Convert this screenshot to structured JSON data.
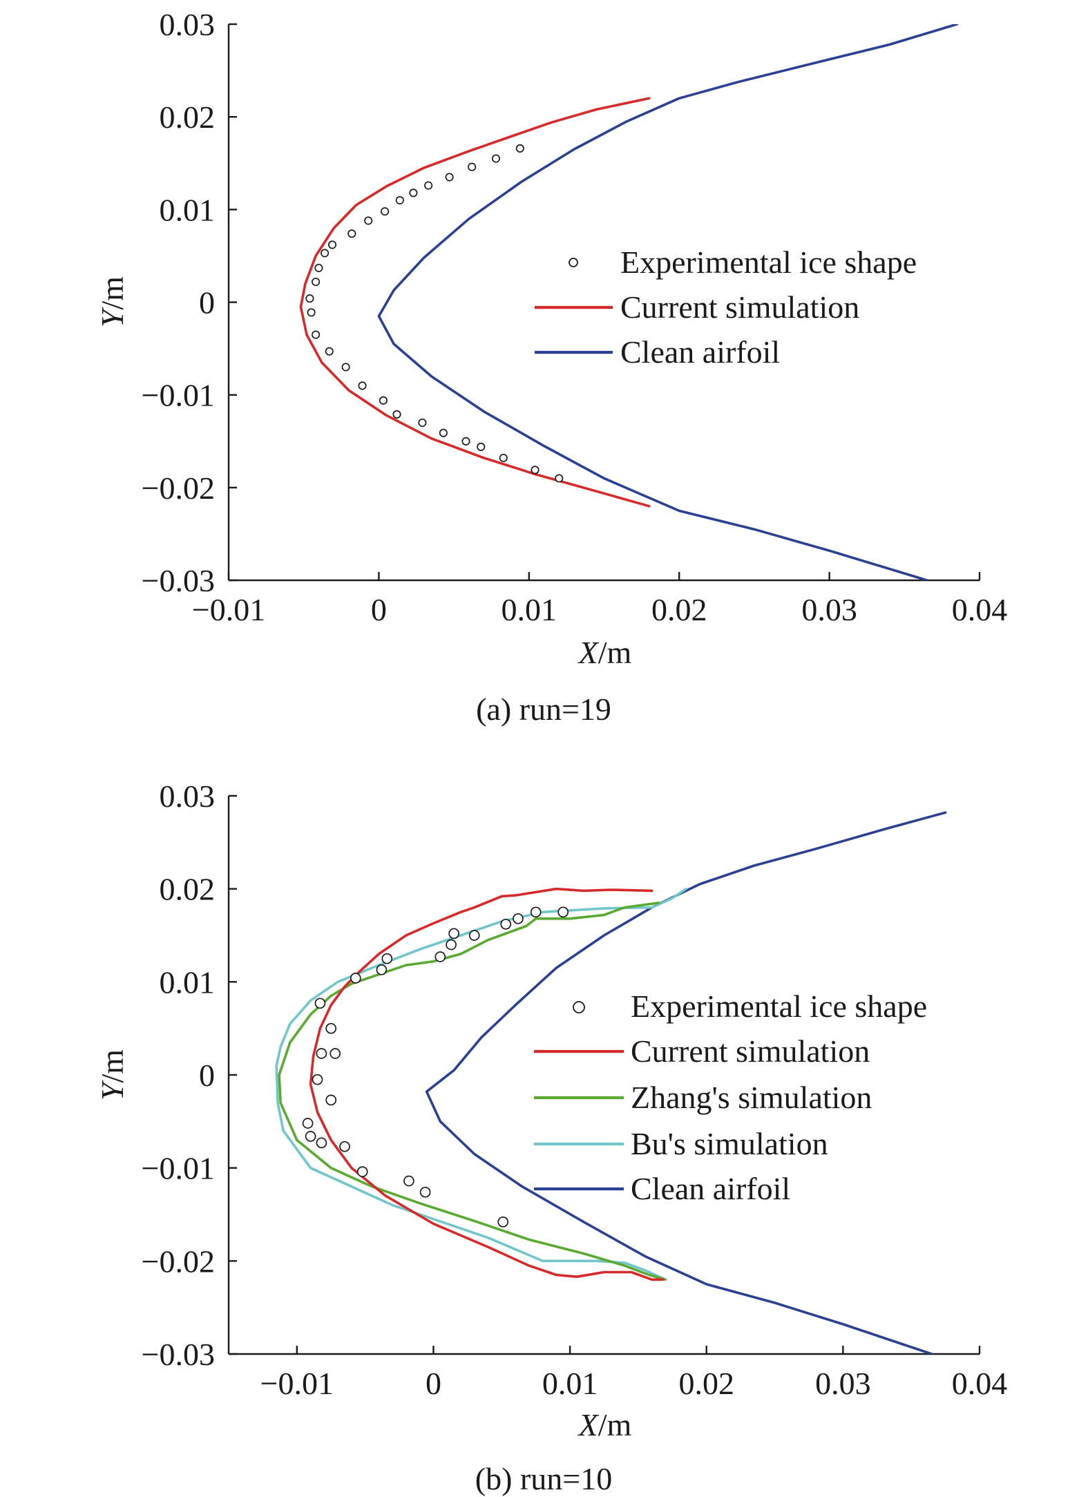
{
  "chart_data": [
    {
      "type": "line",
      "caption": "(a) run=19",
      "xlabel_italic": "X",
      "xlabel_unit": "/m",
      "ylabel_italic": "Y",
      "ylabel_unit": "/m",
      "xlim": [
        -0.01,
        0.04
      ],
      "ylim": [
        -0.03,
        0.03
      ],
      "xticks": [
        -0.01,
        0,
        0.01,
        0.02,
        0.03,
        0.04
      ],
      "xtick_labels": [
        "−0.01",
        "0",
        "0.01",
        "0.02",
        "0.03",
        "0.04"
      ],
      "yticks": [
        0.03,
        0.02,
        0.01,
        0,
        -0.01,
        -0.02,
        -0.03
      ],
      "ytick_labels": [
        "0.03",
        "0.02",
        "0.01",
        "0",
        "−0.01",
        "−0.02",
        "−0.03"
      ],
      "legend": [
        "Experimental ice shape",
        "Current simulation",
        "Clean airfoil"
      ],
      "series": [
        {
          "name": "Experimental ice shape",
          "kind": "markers",
          "color": "#1a1a1a",
          "points": [
            [
              0.0094,
              0.0166
            ],
            [
              0.0078,
              0.0155
            ],
            [
              0.0062,
              0.0146
            ],
            [
              0.0047,
              0.0135
            ],
            [
              0.0033,
              0.0126
            ],
            [
              0.0023,
              0.0118
            ],
            [
              0.0014,
              0.011
            ],
            [
              0.0004,
              0.0098
            ],
            [
              -0.0007,
              0.0088
            ],
            [
              -0.0018,
              0.0074
            ],
            [
              -0.0031,
              0.0062
            ],
            [
              -0.0036,
              0.0053
            ],
            [
              -0.004,
              0.0037
            ],
            [
              -0.0042,
              0.0022
            ],
            [
              -0.0046,
              0.0004
            ],
            [
              -0.0045,
              -0.0011
            ],
            [
              -0.0042,
              -0.0035
            ],
            [
              -0.0033,
              -0.0053
            ],
            [
              -0.0022,
              -0.007
            ],
            [
              -0.0011,
              -0.009
            ],
            [
              0.0003,
              -0.0106
            ],
            [
              0.0012,
              -0.0121
            ],
            [
              0.0029,
              -0.013
            ],
            [
              0.0043,
              -0.0141
            ],
            [
              0.0058,
              -0.015
            ],
            [
              0.0068,
              -0.0156
            ],
            [
              0.0083,
              -0.0168
            ],
            [
              0.0104,
              -0.0181
            ],
            [
              0.012,
              -0.019
            ]
          ]
        },
        {
          "name": "Current simulation",
          "kind": "line",
          "color": "#d62a2a",
          "points": [
            [
              0.018,
              0.022
            ],
            [
              0.0145,
              0.0208
            ],
            [
              0.0115,
              0.0194
            ],
            [
              0.009,
              0.018
            ],
            [
              0.006,
              0.0163
            ],
            [
              0.003,
              0.0145
            ],
            [
              0.0005,
              0.0125
            ],
            [
              -0.0015,
              0.0105
            ],
            [
              -0.003,
              0.008
            ],
            [
              -0.0042,
              0.005
            ],
            [
              -0.0049,
              0.002
            ],
            [
              -0.0052,
              -0.0005
            ],
            [
              -0.0048,
              -0.0035
            ],
            [
              -0.0038,
              -0.0065
            ],
            [
              -0.002,
              -0.0095
            ],
            [
              0.0005,
              -0.0122
            ],
            [
              0.0035,
              -0.0147
            ],
            [
              0.007,
              -0.0168
            ],
            [
              0.0105,
              -0.0186
            ],
            [
              0.0145,
              -0.0204
            ],
            [
              0.018,
              -0.022
            ]
          ]
        },
        {
          "name": "Clean airfoil",
          "kind": "line",
          "color": "#2b3f93",
          "points": [
            [
              0.0385,
              0.03
            ],
            [
              0.034,
              0.0278
            ],
            [
              0.029,
              0.0258
            ],
            [
              0.024,
              0.0238
            ],
            [
              0.02,
              0.022
            ],
            [
              0.0165,
              0.0195
            ],
            [
              0.013,
              0.0165
            ],
            [
              0.0095,
              0.013
            ],
            [
              0.006,
              0.009
            ],
            [
              0.003,
              0.0048
            ],
            [
              0.001,
              0.0013
            ],
            [
              0.0,
              -0.0015
            ],
            [
              0.001,
              -0.0045
            ],
            [
              0.0035,
              -0.008
            ],
            [
              0.007,
              -0.0118
            ],
            [
              0.011,
              -0.0155
            ],
            [
              0.015,
              -0.019
            ],
            [
              0.02,
              -0.0225
            ],
            [
              0.025,
              -0.0245
            ],
            [
              0.03,
              -0.0268
            ],
            [
              0.0365,
              -0.03
            ]
          ]
        }
      ]
    },
    {
      "type": "line",
      "caption": "(b) run=10",
      "xlabel_italic": "X",
      "xlabel_unit": "/m",
      "ylabel_italic": "Y",
      "ylabel_unit": "/m",
      "xlim": [
        -0.015,
        0.04
      ],
      "ylim": [
        -0.03,
        0.03
      ],
      "xticks": [
        -0.01,
        0,
        0.01,
        0.02,
        0.03,
        0.04
      ],
      "xtick_labels": [
        "−0.01",
        "0",
        "0.01",
        "0.02",
        "0.03",
        "0.04"
      ],
      "yticks": [
        0.03,
        0.02,
        0.01,
        0,
        -0.01,
        -0.02,
        -0.03
      ],
      "ytick_labels": [
        "0.03",
        "0.02",
        "0.01",
        "0",
        "−0.01",
        "−0.02",
        "−0.03"
      ],
      "legend": [
        "Experimental ice shape",
        "Current simulation",
        "Zhang's simulation",
        "Bu's simulation",
        "Clean airfoil"
      ],
      "series": [
        {
          "name": "Experimental ice shape",
          "kind": "markers",
          "color": "#1a1a1a",
          "points": [
            [
              0.0095,
              0.0175
            ],
            [
              0.0075,
              0.0175
            ],
            [
              0.0062,
              0.0168
            ],
            [
              0.0053,
              0.0162
            ],
            [
              0.003,
              0.015
            ],
            [
              0.0015,
              0.0152
            ],
            [
              0.0013,
              0.014
            ],
            [
              0.0005,
              0.0127
            ],
            [
              -0.0034,
              0.0125
            ],
            [
              -0.0038,
              0.0113
            ],
            [
              -0.0057,
              0.0104
            ],
            [
              -0.0083,
              0.0077
            ],
            [
              -0.0075,
              0.005
            ],
            [
              -0.0072,
              0.0023
            ],
            [
              -0.0082,
              0.0023
            ],
            [
              -0.0085,
              -0.0005
            ],
            [
              -0.0075,
              -0.0027
            ],
            [
              -0.0092,
              -0.0052
            ],
            [
              -0.009,
              -0.0066
            ],
            [
              -0.0082,
              -0.0073
            ],
            [
              -0.0065,
              -0.0077
            ],
            [
              -0.0052,
              -0.0104
            ],
            [
              -0.0018,
              -0.0114
            ],
            [
              -0.0006,
              -0.0126
            ],
            [
              0.0051,
              -0.0158
            ]
          ]
        },
        {
          "name": "Current simulation",
          "kind": "line",
          "color": "#d62a2a",
          "points": [
            [
              0.016,
              0.0198
            ],
            [
              0.013,
              0.0199
            ],
            [
              0.011,
              0.0198
            ],
            [
              0.009,
              0.02
            ],
            [
              0.006,
              0.0193
            ],
            [
              0.005,
              0.0192
            ],
            [
              0.003,
              0.018
            ],
            [
              0.002,
              0.0175
            ],
            [
              0.0,
              0.0163
            ],
            [
              -0.002,
              0.015
            ],
            [
              -0.004,
              0.013
            ],
            [
              -0.0055,
              0.011
            ],
            [
              -0.0065,
              0.0095
            ],
            [
              -0.0075,
              0.0075
            ],
            [
              -0.0083,
              0.005
            ],
            [
              -0.0088,
              0.002
            ],
            [
              -0.009,
              -0.001
            ],
            [
              -0.0085,
              -0.004
            ],
            [
              -0.0075,
              -0.007
            ],
            [
              -0.006,
              -0.01
            ],
            [
              -0.0035,
              -0.013
            ],
            [
              0.0,
              -0.016
            ],
            [
              0.004,
              -0.0185
            ],
            [
              0.007,
              -0.0205
            ],
            [
              0.009,
              -0.0215
            ],
            [
              0.0105,
              -0.0217
            ],
            [
              0.0125,
              -0.0212
            ],
            [
              0.0145,
              -0.0212
            ],
            [
              0.016,
              -0.022
            ],
            [
              0.0168,
              -0.022
            ]
          ]
        },
        {
          "name": "Zhang's simulation",
          "kind": "line",
          "color": "#5aaa32",
          "points": [
            [
              0.0165,
              0.0185
            ],
            [
              0.014,
              0.018
            ],
            [
              0.0125,
              0.0172
            ],
            [
              0.01,
              0.0168
            ],
            [
              0.0075,
              0.0168
            ],
            [
              0.0068,
              0.016
            ],
            [
              0.004,
              0.0145
            ],
            [
              0.002,
              0.013
            ],
            [
              0.0,
              0.0122
            ],
            [
              -0.002,
              0.0118
            ],
            [
              -0.004,
              0.0108
            ],
            [
              -0.006,
              0.0098
            ],
            [
              -0.0075,
              0.0085
            ],
            [
              -0.009,
              0.0065
            ],
            [
              -0.0105,
              0.0035
            ],
            [
              -0.0113,
              0.0
            ],
            [
              -0.0112,
              -0.003
            ],
            [
              -0.01,
              -0.007
            ],
            [
              -0.0075,
              -0.01
            ],
            [
              -0.0045,
              -0.012
            ],
            [
              -0.001,
              -0.0138
            ],
            [
              0.003,
              -0.0157
            ],
            [
              0.007,
              -0.0177
            ],
            [
              0.011,
              -0.0192
            ],
            [
              0.014,
              -0.0205
            ],
            [
              0.0158,
              -0.0215
            ],
            [
              0.017,
              -0.022
            ]
          ]
        },
        {
          "name": "Bu's simulation",
          "kind": "line",
          "color": "#72c6c9",
          "points": [
            [
              0.0185,
              0.02
            ],
            [
              0.0175,
              0.019
            ],
            [
              0.016,
              0.018
            ],
            [
              0.0125,
              0.0179
            ],
            [
              0.008,
              0.0175
            ],
            [
              0.005,
              0.0165
            ],
            [
              0.002,
              0.015
            ],
            [
              -0.001,
              0.0135
            ],
            [
              -0.004,
              0.0118
            ],
            [
              -0.007,
              0.01
            ],
            [
              -0.009,
              0.008
            ],
            [
              -0.0105,
              0.0055
            ],
            [
              -0.0112,
              0.003
            ],
            [
              -0.0115,
              0.001
            ],
            [
              -0.0114,
              -0.003
            ],
            [
              -0.011,
              -0.006
            ],
            [
              -0.009,
              -0.01
            ],
            [
              -0.006,
              -0.012
            ],
            [
              -0.003,
              -0.014
            ],
            [
              0.0,
              -0.0155
            ],
            [
              0.004,
              -0.0175
            ],
            [
              0.008,
              -0.02
            ],
            [
              0.012,
              -0.02
            ],
            [
              0.014,
              -0.0202
            ],
            [
              0.0155,
              -0.021
            ],
            [
              0.017,
              -0.022
            ]
          ]
        },
        {
          "name": "Clean airfoil",
          "kind": "line",
          "color": "#2b3f93",
          "points": [
            [
              0.0375,
              0.0282
            ],
            [
              0.033,
              0.0264
            ],
            [
              0.028,
              0.0243
            ],
            [
              0.0235,
              0.0225
            ],
            [
              0.0195,
              0.0205
            ],
            [
              0.016,
              0.018
            ],
            [
              0.0125,
              0.015
            ],
            [
              0.009,
              0.0115
            ],
            [
              0.006,
              0.0075
            ],
            [
              0.0035,
              0.004
            ],
            [
              0.0015,
              0.0005
            ],
            [
              -0.0005,
              -0.0018
            ],
            [
              0.0005,
              -0.005
            ],
            [
              0.003,
              -0.0085
            ],
            [
              0.0065,
              -0.012
            ],
            [
              0.011,
              -0.0158
            ],
            [
              0.0155,
              -0.0195
            ],
            [
              0.02,
              -0.0225
            ],
            [
              0.025,
              -0.0245
            ],
            [
              0.03,
              -0.0268
            ],
            [
              0.0365,
              -0.03
            ]
          ]
        }
      ]
    }
  ]
}
